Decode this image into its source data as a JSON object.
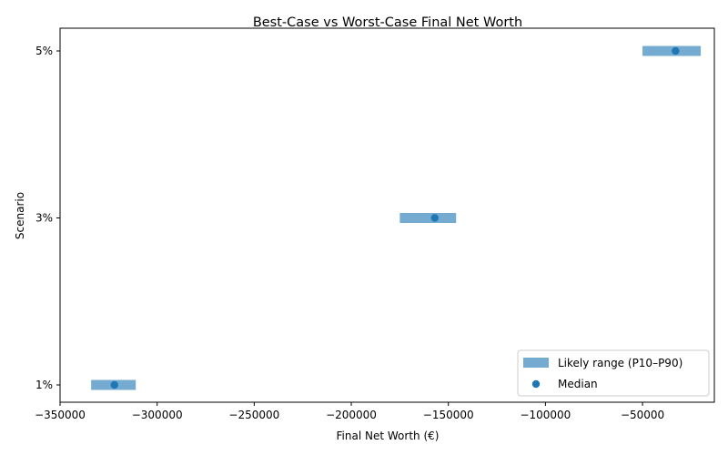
{
  "chart_data": {
    "type": "range",
    "title": "Best-Case vs Worst-Case Final Net Worth",
    "xlabel": "Final Net Worth (€)",
    "ylabel": "Scenario",
    "xlim": [
      -350000,
      -13000
    ],
    "x_ticks": [
      -350000,
      -300000,
      -250000,
      -200000,
      -150000,
      -100000,
      -50000
    ],
    "categories": [
      "1%",
      "3%",
      "5%"
    ],
    "series": [
      {
        "name": "Likely range (P10–P90)",
        "kind": "range",
        "color": "#75aad1",
        "low": [
          -334000,
          -175000,
          -50000
        ],
        "high": [
          -311000,
          -146000,
          -20000
        ]
      },
      {
        "name": "Median",
        "kind": "point",
        "color": "#1f77b4",
        "values": [
          -322000,
          -157000,
          -33000
        ]
      }
    ],
    "legend_position": "lower-right",
    "grid": false
  }
}
